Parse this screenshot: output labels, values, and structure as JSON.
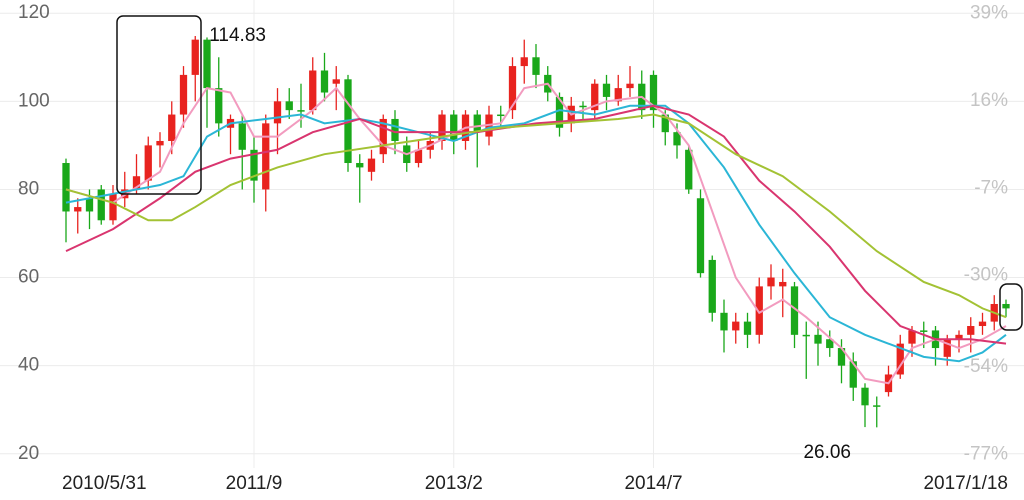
{
  "chart_data": {
    "type": "candlestick",
    "categories": [
      "2010/5/31",
      null,
      null,
      null,
      null,
      null,
      null,
      null,
      null,
      null,
      null,
      null,
      null,
      null,
      null,
      null,
      "2011/9",
      null,
      null,
      null,
      null,
      null,
      null,
      null,
      null,
      null,
      null,
      null,
      null,
      null,
      null,
      null,
      null,
      "2013/2",
      null,
      null,
      null,
      null,
      null,
      null,
      null,
      null,
      null,
      null,
      null,
      null,
      null,
      null,
      null,
      null,
      "2014/7",
      null,
      null,
      null,
      null,
      null,
      null,
      null,
      null,
      null,
      null,
      null,
      null,
      null,
      null,
      null,
      null,
      null,
      null,
      null,
      null,
      null,
      null,
      null,
      null,
      null,
      null,
      null,
      null,
      null,
      "2017/1/18"
    ],
    "open": [
      86,
      75,
      78,
      80,
      73,
      78,
      80,
      82,
      90,
      91,
      97,
      106,
      114,
      103,
      94,
      95,
      89,
      80,
      95,
      100,
      98,
      98,
      107,
      104,
      105,
      86,
      84,
      88,
      96,
      90,
      86,
      89,
      91,
      97,
      91,
      97,
      92,
      97,
      98,
      108,
      110,
      106,
      101,
      95,
      99,
      98,
      104,
      100,
      103,
      104,
      106,
      97,
      93,
      89,
      78,
      64,
      52,
      48,
      50,
      47,
      58,
      58,
      58,
      47,
      47,
      46,
      44,
      41,
      35,
      31,
      34,
      38,
      45,
      48,
      48,
      42,
      46,
      47,
      49,
      50,
      54
    ],
    "high": [
      87,
      78,
      80,
      81,
      81,
      84,
      88,
      92,
      93,
      100,
      108,
      114.83,
      114.5,
      110,
      97,
      97,
      92,
      97,
      103,
      103,
      104,
      110,
      111,
      108,
      106,
      88,
      89,
      97,
      98,
      92,
      91,
      93,
      98,
      98,
      98,
      98,
      99,
      99,
      110,
      114,
      113,
      108,
      102,
      101,
      100,
      105,
      106,
      106,
      108,
      107,
      107,
      98,
      95,
      90,
      80,
      65,
      55,
      52,
      52,
      60,
      63,
      62,
      59,
      50,
      50,
      48,
      46,
      43,
      36,
      33,
      40,
      47,
      49,
      50,
      49,
      47,
      48,
      51,
      52,
      56,
      55
    ],
    "low": [
      68,
      70,
      71,
      72,
      72,
      76,
      79,
      80,
      85,
      88,
      94,
      100,
      94,
      92,
      88,
      80,
      77,
      75,
      88,
      96,
      94,
      97,
      100,
      98,
      84,
      77,
      82,
      86,
      88,
      84,
      85,
      87,
      89,
      88,
      89,
      85,
      90,
      94,
      96,
      104,
      103,
      100,
      92,
      93,
      96,
      96,
      98,
      99,
      101,
      96,
      94,
      90,
      87,
      79,
      60,
      50,
      43,
      45,
      44,
      45,
      55,
      51,
      44,
      37,
      40,
      42,
      36,
      32,
      26.06,
      26,
      33,
      37,
      42,
      44,
      40,
      40,
      43,
      43,
      47,
      48,
      51
    ],
    "close": [
      75,
      76,
      75,
      73,
      79,
      80,
      83,
      90,
      91,
      97,
      106,
      114,
      103,
      95,
      96,
      89,
      82,
      95,
      100,
      98,
      98,
      107,
      102,
      105,
      86,
      85,
      87,
      96,
      91,
      86,
      89,
      91,
      97,
      91,
      97,
      93,
      97,
      97,
      108,
      110,
      106,
      102,
      94,
      99,
      99,
      104,
      101,
      103,
      104,
      98,
      98,
      93,
      90,
      80,
      61,
      52,
      48,
      50,
      47,
      58,
      60,
      59,
      47,
      47,
      45,
      44,
      40,
      35,
      31,
      31,
      38,
      45,
      48,
      48,
      44,
      46,
      47,
      49,
      50,
      54,
      53
    ],
    "up_color": "#e8231f",
    "down_color": "#1aa81a",
    "lines": [
      {
        "color": "#f29bbf",
        "x": [
          0,
          4,
          8,
          10,
          12,
          14,
          16,
          18,
          21,
          23,
          25,
          27,
          29,
          31,
          34,
          37,
          39,
          41,
          43,
          46,
          49,
          51,
          53,
          55,
          57,
          59,
          61,
          63,
          66,
          68,
          70,
          72,
          74,
          76,
          78,
          80
        ],
        "values": [
          80,
          77,
          84,
          95,
          103,
          102,
          92,
          92,
          98,
          103,
          96,
          90,
          88,
          90,
          94,
          95,
          103,
          104,
          97,
          100,
          101,
          97,
          90,
          75,
          60,
          52,
          55,
          51,
          44,
          37,
          36,
          44,
          46,
          44,
          46,
          49
        ]
      },
      {
        "color": "#2bb6d6",
        "x": [
          0,
          4,
          8,
          10,
          12,
          14,
          17,
          20,
          22,
          25,
          27,
          30,
          33,
          36,
          39,
          42,
          45,
          48,
          51,
          53,
          56,
          59,
          62,
          65,
          68,
          70,
          73,
          76,
          78,
          80
        ],
        "values": [
          77,
          79,
          81,
          83,
          92,
          95,
          96,
          97,
          95,
          96,
          95,
          93,
          91,
          94,
          95,
          98,
          97,
          99,
          99,
          95,
          85,
          72,
          61,
          51,
          47,
          45,
          42,
          41,
          43,
          47
        ]
      },
      {
        "color": "#d9356f",
        "x": [
          0,
          4,
          8,
          11,
          14,
          18,
          21,
          25,
          28,
          31,
          35,
          40,
          45,
          50,
          53,
          56,
          59,
          62,
          65,
          68,
          71,
          74,
          77,
          80
        ],
        "values": [
          66,
          71,
          78,
          84,
          87,
          89,
          93,
          96,
          93,
          93,
          93,
          95,
          96,
          99,
          97,
          92,
          82,
          75,
          67,
          57,
          49,
          46,
          46,
          45
        ]
      },
      {
        "color": "#a3c234",
        "x": [
          0,
          4,
          7,
          9,
          11,
          14,
          18,
          22,
          27,
          32,
          37,
          42,
          47,
          50,
          53,
          57,
          61,
          65,
          69,
          73,
          76,
          78,
          80
        ],
        "values": [
          80,
          77,
          73,
          73,
          76,
          81,
          85,
          88,
          90,
          92,
          94,
          95,
          96,
          97,
          95,
          88,
          83,
          75,
          66,
          59,
          56,
          53,
          51
        ]
      }
    ],
    "annotations": [
      {
        "label": "114.83",
        "value": 114.83
      },
      {
        "label": "26.06",
        "value": 26.06
      }
    ],
    "ylim": [
      17,
      123
    ],
    "yticks": [
      20,
      40,
      60,
      80,
      100,
      120
    ],
    "y2lim": [
      -80.3,
      42.5
    ],
    "y2ticks": [
      {
        "value": 39,
        "label": "39%"
      },
      {
        "value": 16,
        "label": "16%"
      },
      {
        "value": -7,
        "label": "-7%"
      },
      {
        "value": -30,
        "label": "-30%"
      },
      {
        "value": -54,
        "label": "-54%"
      },
      {
        "value": -77,
        "label": "-77%"
      }
    ],
    "grid": true
  }
}
